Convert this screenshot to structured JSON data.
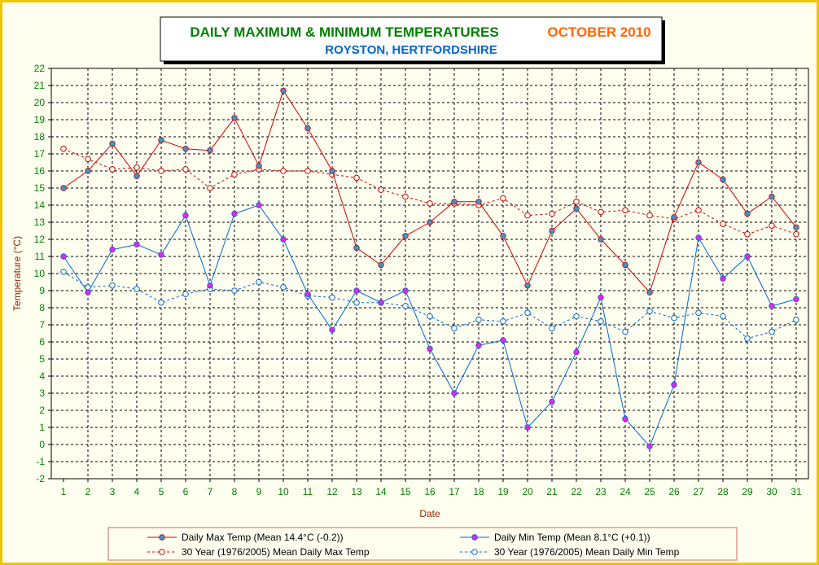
{
  "chart_data": {
    "type": "line",
    "title": "DAILY MAXIMUM &  MINIMUM  TEMPERATURES",
    "title_period": "OCTOBER 2010",
    "subtitle": "ROYSTON, HERTFORDSHIRE",
    "xlabel": "Date",
    "ylabel": "Temperature (°C)",
    "ylim": [
      -2,
      22
    ],
    "xlim": [
      1,
      31
    ],
    "grid": true,
    "legend_position": "bottom",
    "x": [
      1,
      2,
      3,
      4,
      5,
      6,
      7,
      8,
      9,
      10,
      11,
      12,
      13,
      14,
      15,
      16,
      17,
      18,
      19,
      20,
      21,
      22,
      23,
      24,
      25,
      26,
      27,
      28,
      29,
      30,
      31
    ],
    "series": [
      {
        "name": "Daily Max Temp (Mean 14.4°C (-0.2))",
        "color": "#cc0000",
        "marker_color": "#3399cc",
        "style": "solid",
        "values": [
          15.0,
          16.0,
          17.6,
          15.7,
          17.8,
          17.3,
          17.2,
          19.1,
          16.3,
          20.7,
          18.5,
          16.0,
          11.5,
          10.5,
          12.2,
          13.0,
          14.2,
          14.2,
          12.2,
          9.3,
          12.5,
          13.8,
          12.0,
          10.5,
          8.9,
          13.3,
          16.5,
          15.5,
          13.5,
          14.5,
          12.7
        ]
      },
      {
        "name": "Daily Min Temp (Mean 8.1°C (+0.1))",
        "color": "#0066cc",
        "marker_color": "#ee22ee",
        "style": "solid",
        "values": [
          11.0,
          8.9,
          11.4,
          11.7,
          11.1,
          13.4,
          9.3,
          13.5,
          14.0,
          12.0,
          8.8,
          6.7,
          9.0,
          8.3,
          9.0,
          5.6,
          3.0,
          5.8,
          6.1,
          1.0,
          2.5,
          5.4,
          8.6,
          1.5,
          -0.1,
          3.5,
          12.1,
          9.7,
          11.0,
          8.1,
          8.5
        ]
      },
      {
        "name": "30 Year (1976/2005) Mean Daily Max Temp",
        "color": "#cc0000",
        "marker_color": "#cc0000",
        "style": "dashed",
        "values": [
          17.3,
          16.7,
          16.1,
          16.2,
          16.0,
          16.1,
          15.0,
          15.8,
          16.1,
          16.0,
          16.0,
          15.8,
          15.6,
          14.9,
          14.5,
          14.1,
          14.1,
          14.0,
          14.4,
          13.4,
          13.5,
          14.2,
          13.6,
          13.7,
          13.4,
          13.2,
          13.7,
          12.9,
          12.3,
          12.8,
          12.3
        ]
      },
      {
        "name": "30 Year (1976/2005) Mean Daily Min Temp",
        "color": "#0066cc",
        "marker_color": "#0066cc",
        "style": "dashed",
        "values": [
          10.1,
          9.2,
          9.3,
          9.1,
          8.3,
          8.8,
          9.1,
          9.0,
          9.5,
          9.2,
          8.7,
          8.6,
          8.3,
          8.3,
          8.1,
          7.5,
          6.8,
          7.3,
          7.2,
          7.7,
          6.8,
          7.5,
          7.2,
          6.6,
          7.8,
          7.4,
          7.7,
          7.5,
          6.2,
          6.6,
          7.3
        ]
      }
    ]
  }
}
